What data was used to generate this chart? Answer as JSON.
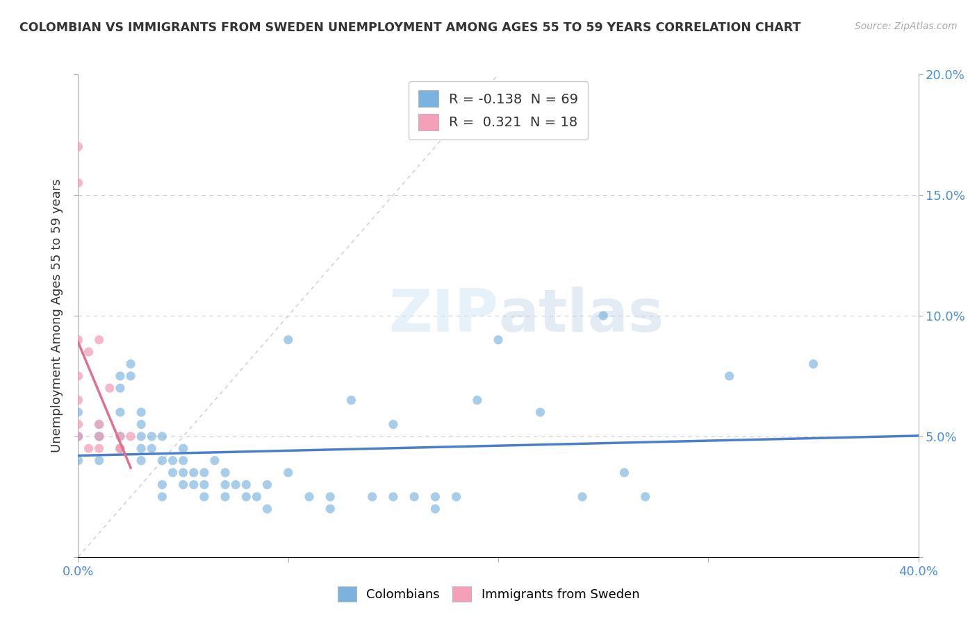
{
  "title": "COLOMBIAN VS IMMIGRANTS FROM SWEDEN UNEMPLOYMENT AMONG AGES 55 TO 59 YEARS CORRELATION CHART",
  "source": "Source: ZipAtlas.com",
  "ylabel": "Unemployment Among Ages 55 to 59 years",
  "xlim": [
    0.0,
    0.4
  ],
  "ylim": [
    0.0,
    0.2
  ],
  "xtick_positions": [
    0.0,
    0.1,
    0.2,
    0.3,
    0.4
  ],
  "xticklabels": [
    "0.0%",
    "",
    "",
    "",
    "40.0%"
  ],
  "ytick_positions": [
    0.0,
    0.05,
    0.1,
    0.15,
    0.2
  ],
  "yticklabels_right": [
    "",
    "5.0%",
    "10.0%",
    "15.0%",
    "20.0%"
  ],
  "watermark": "ZIPatlas",
  "legend_r_entries": [
    {
      "label": "R = -0.138  N = 69",
      "color": "#a8c8f0"
    },
    {
      "label": "R =  0.321  N = 18",
      "color": "#f4b8c8"
    }
  ],
  "colombian_scatter": [
    [
      0.0,
      0.05
    ],
    [
      0.0,
      0.04
    ],
    [
      0.0,
      0.06
    ],
    [
      0.0,
      0.05
    ],
    [
      0.01,
      0.05
    ],
    [
      0.01,
      0.04
    ],
    [
      0.01,
      0.055
    ],
    [
      0.01,
      0.05
    ],
    [
      0.02,
      0.05
    ],
    [
      0.02,
      0.045
    ],
    [
      0.02,
      0.06
    ],
    [
      0.02,
      0.07
    ],
    [
      0.02,
      0.075
    ],
    [
      0.025,
      0.08
    ],
    [
      0.025,
      0.075
    ],
    [
      0.03,
      0.05
    ],
    [
      0.03,
      0.045
    ],
    [
      0.03,
      0.055
    ],
    [
      0.03,
      0.04
    ],
    [
      0.03,
      0.06
    ],
    [
      0.035,
      0.05
    ],
    [
      0.035,
      0.045
    ],
    [
      0.04,
      0.03
    ],
    [
      0.04,
      0.025
    ],
    [
      0.04,
      0.04
    ],
    [
      0.04,
      0.05
    ],
    [
      0.045,
      0.035
    ],
    [
      0.045,
      0.04
    ],
    [
      0.05,
      0.04
    ],
    [
      0.05,
      0.03
    ],
    [
      0.05,
      0.035
    ],
    [
      0.05,
      0.045
    ],
    [
      0.055,
      0.035
    ],
    [
      0.055,
      0.03
    ],
    [
      0.06,
      0.03
    ],
    [
      0.06,
      0.025
    ],
    [
      0.06,
      0.035
    ],
    [
      0.065,
      0.04
    ],
    [
      0.07,
      0.03
    ],
    [
      0.07,
      0.035
    ],
    [
      0.07,
      0.025
    ],
    [
      0.075,
      0.03
    ],
    [
      0.08,
      0.025
    ],
    [
      0.08,
      0.03
    ],
    [
      0.085,
      0.025
    ],
    [
      0.09,
      0.02
    ],
    [
      0.09,
      0.03
    ],
    [
      0.1,
      0.09
    ],
    [
      0.1,
      0.035
    ],
    [
      0.11,
      0.025
    ],
    [
      0.12,
      0.025
    ],
    [
      0.12,
      0.02
    ],
    [
      0.13,
      0.065
    ],
    [
      0.14,
      0.025
    ],
    [
      0.15,
      0.025
    ],
    [
      0.15,
      0.055
    ],
    [
      0.16,
      0.025
    ],
    [
      0.17,
      0.025
    ],
    [
      0.17,
      0.02
    ],
    [
      0.18,
      0.025
    ],
    [
      0.19,
      0.065
    ],
    [
      0.2,
      0.09
    ],
    [
      0.22,
      0.06
    ],
    [
      0.24,
      0.025
    ],
    [
      0.25,
      0.1
    ],
    [
      0.26,
      0.035
    ],
    [
      0.27,
      0.025
    ],
    [
      0.31,
      0.075
    ],
    [
      0.35,
      0.08
    ]
  ],
  "sweden_scatter": [
    [
      0.0,
      0.17
    ],
    [
      0.0,
      0.155
    ],
    [
      0.0,
      0.09
    ],
    [
      0.0,
      0.075
    ],
    [
      0.0,
      0.065
    ],
    [
      0.0,
      0.055
    ],
    [
      0.0,
      0.05
    ],
    [
      0.005,
      0.085
    ],
    [
      0.005,
      0.045
    ],
    [
      0.01,
      0.05
    ],
    [
      0.01,
      0.045
    ],
    [
      0.01,
      0.055
    ],
    [
      0.01,
      0.09
    ],
    [
      0.015,
      0.07
    ],
    [
      0.02,
      0.045
    ],
    [
      0.02,
      0.05
    ],
    [
      0.02,
      0.045
    ],
    [
      0.025,
      0.05
    ]
  ],
  "colombian_color": "#7ab3e0",
  "sweden_color": "#f4a0b8",
  "colombian_line_color": "#4a7fca",
  "sweden_line_color": "#e07090",
  "background_color": "#ffffff",
  "grid_color": "#cccccc",
  "ref_line_color": "#cccccc",
  "watermark_color": "#d0e4f4",
  "watermark_alpha": 0.5
}
